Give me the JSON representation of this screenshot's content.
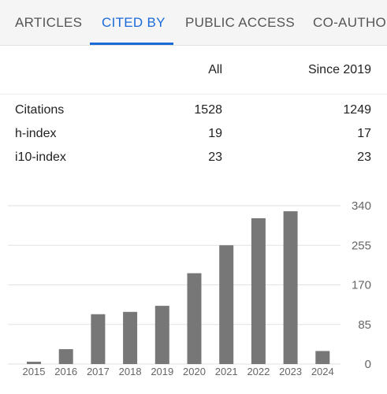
{
  "tabs": [
    {
      "label": "ARTICLES"
    },
    {
      "label": "CITED BY"
    },
    {
      "label": "PUBLIC ACCESS"
    },
    {
      "label": "CO-AUTHORS"
    }
  ],
  "table": {
    "headers": {
      "all": "All",
      "since": "Since 2019"
    },
    "rows": [
      {
        "label": "Citations",
        "all": "1528",
        "since": "1249"
      },
      {
        "label": "h-index",
        "all": "19",
        "since": "17"
      },
      {
        "label": "i10-index",
        "all": "23",
        "since": "23"
      }
    ]
  },
  "chart_data": {
    "type": "bar",
    "categories": [
      "2015",
      "2016",
      "2017",
      "2018",
      "2019",
      "2020",
      "2021",
      "2022",
      "2023",
      "2024"
    ],
    "values": [
      5,
      32,
      107,
      112,
      125,
      195,
      255,
      313,
      328,
      28
    ],
    "yticks": [
      0,
      85,
      170,
      255,
      340
    ],
    "ylim": [
      0,
      340
    ],
    "grid": true,
    "bar_color": "#777777"
  }
}
